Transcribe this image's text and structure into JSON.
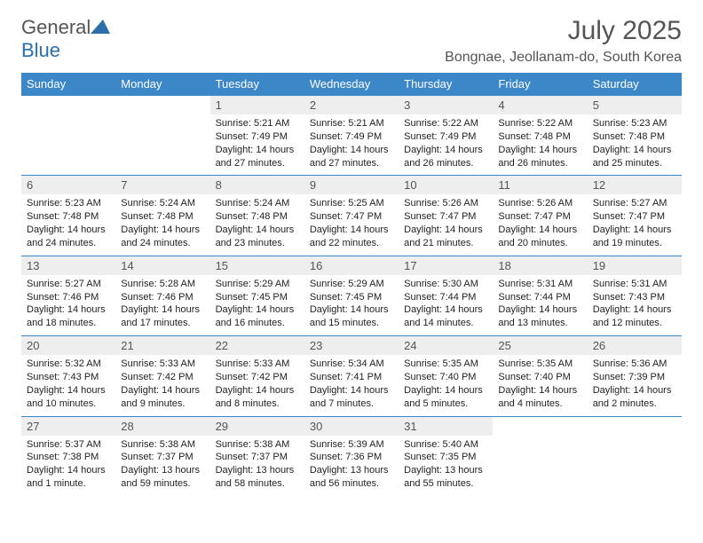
{
  "brand": {
    "part1": "General",
    "part2": "Blue"
  },
  "title": "July 2025",
  "location": "Bongnae, Jeollanam-do, South Korea",
  "colors": {
    "header_bg": "#3b87c8",
    "header_text": "#ffffff",
    "daynum_bg": "#eeeeee",
    "text_gray": "#555555",
    "border": "#3b87c8"
  },
  "day_headers": [
    "Sunday",
    "Monday",
    "Tuesday",
    "Wednesday",
    "Thursday",
    "Friday",
    "Saturday"
  ],
  "weeks": [
    [
      null,
      null,
      {
        "n": "1",
        "sr": "5:21 AM",
        "ss": "7:49 PM",
        "dl": "14 hours and 27 minutes."
      },
      {
        "n": "2",
        "sr": "5:21 AM",
        "ss": "7:49 PM",
        "dl": "14 hours and 27 minutes."
      },
      {
        "n": "3",
        "sr": "5:22 AM",
        "ss": "7:49 PM",
        "dl": "14 hours and 26 minutes."
      },
      {
        "n": "4",
        "sr": "5:22 AM",
        "ss": "7:48 PM",
        "dl": "14 hours and 26 minutes."
      },
      {
        "n": "5",
        "sr": "5:23 AM",
        "ss": "7:48 PM",
        "dl": "14 hours and 25 minutes."
      }
    ],
    [
      {
        "n": "6",
        "sr": "5:23 AM",
        "ss": "7:48 PM",
        "dl": "14 hours and 24 minutes."
      },
      {
        "n": "7",
        "sr": "5:24 AM",
        "ss": "7:48 PM",
        "dl": "14 hours and 24 minutes."
      },
      {
        "n": "8",
        "sr": "5:24 AM",
        "ss": "7:48 PM",
        "dl": "14 hours and 23 minutes."
      },
      {
        "n": "9",
        "sr": "5:25 AM",
        "ss": "7:47 PM",
        "dl": "14 hours and 22 minutes."
      },
      {
        "n": "10",
        "sr": "5:26 AM",
        "ss": "7:47 PM",
        "dl": "14 hours and 21 minutes."
      },
      {
        "n": "11",
        "sr": "5:26 AM",
        "ss": "7:47 PM",
        "dl": "14 hours and 20 minutes."
      },
      {
        "n": "12",
        "sr": "5:27 AM",
        "ss": "7:47 PM",
        "dl": "14 hours and 19 minutes."
      }
    ],
    [
      {
        "n": "13",
        "sr": "5:27 AM",
        "ss": "7:46 PM",
        "dl": "14 hours and 18 minutes."
      },
      {
        "n": "14",
        "sr": "5:28 AM",
        "ss": "7:46 PM",
        "dl": "14 hours and 17 minutes."
      },
      {
        "n": "15",
        "sr": "5:29 AM",
        "ss": "7:45 PM",
        "dl": "14 hours and 16 minutes."
      },
      {
        "n": "16",
        "sr": "5:29 AM",
        "ss": "7:45 PM",
        "dl": "14 hours and 15 minutes."
      },
      {
        "n": "17",
        "sr": "5:30 AM",
        "ss": "7:44 PM",
        "dl": "14 hours and 14 minutes."
      },
      {
        "n": "18",
        "sr": "5:31 AM",
        "ss": "7:44 PM",
        "dl": "14 hours and 13 minutes."
      },
      {
        "n": "19",
        "sr": "5:31 AM",
        "ss": "7:43 PM",
        "dl": "14 hours and 12 minutes."
      }
    ],
    [
      {
        "n": "20",
        "sr": "5:32 AM",
        "ss": "7:43 PM",
        "dl": "14 hours and 10 minutes."
      },
      {
        "n": "21",
        "sr": "5:33 AM",
        "ss": "7:42 PM",
        "dl": "14 hours and 9 minutes."
      },
      {
        "n": "22",
        "sr": "5:33 AM",
        "ss": "7:42 PM",
        "dl": "14 hours and 8 minutes."
      },
      {
        "n": "23",
        "sr": "5:34 AM",
        "ss": "7:41 PM",
        "dl": "14 hours and 7 minutes."
      },
      {
        "n": "24",
        "sr": "5:35 AM",
        "ss": "7:40 PM",
        "dl": "14 hours and 5 minutes."
      },
      {
        "n": "25",
        "sr": "5:35 AM",
        "ss": "7:40 PM",
        "dl": "14 hours and 4 minutes."
      },
      {
        "n": "26",
        "sr": "5:36 AM",
        "ss": "7:39 PM",
        "dl": "14 hours and 2 minutes."
      }
    ],
    [
      {
        "n": "27",
        "sr": "5:37 AM",
        "ss": "7:38 PM",
        "dl": "14 hours and 1 minute."
      },
      {
        "n": "28",
        "sr": "5:38 AM",
        "ss": "7:37 PM",
        "dl": "13 hours and 59 minutes."
      },
      {
        "n": "29",
        "sr": "5:38 AM",
        "ss": "7:37 PM",
        "dl": "13 hours and 58 minutes."
      },
      {
        "n": "30",
        "sr": "5:39 AM",
        "ss": "7:36 PM",
        "dl": "13 hours and 56 minutes."
      },
      {
        "n": "31",
        "sr": "5:40 AM",
        "ss": "7:35 PM",
        "dl": "13 hours and 55 minutes."
      },
      null,
      null
    ]
  ],
  "labels": {
    "sunrise": "Sunrise:",
    "sunset": "Sunset:",
    "daylight": "Daylight:"
  }
}
